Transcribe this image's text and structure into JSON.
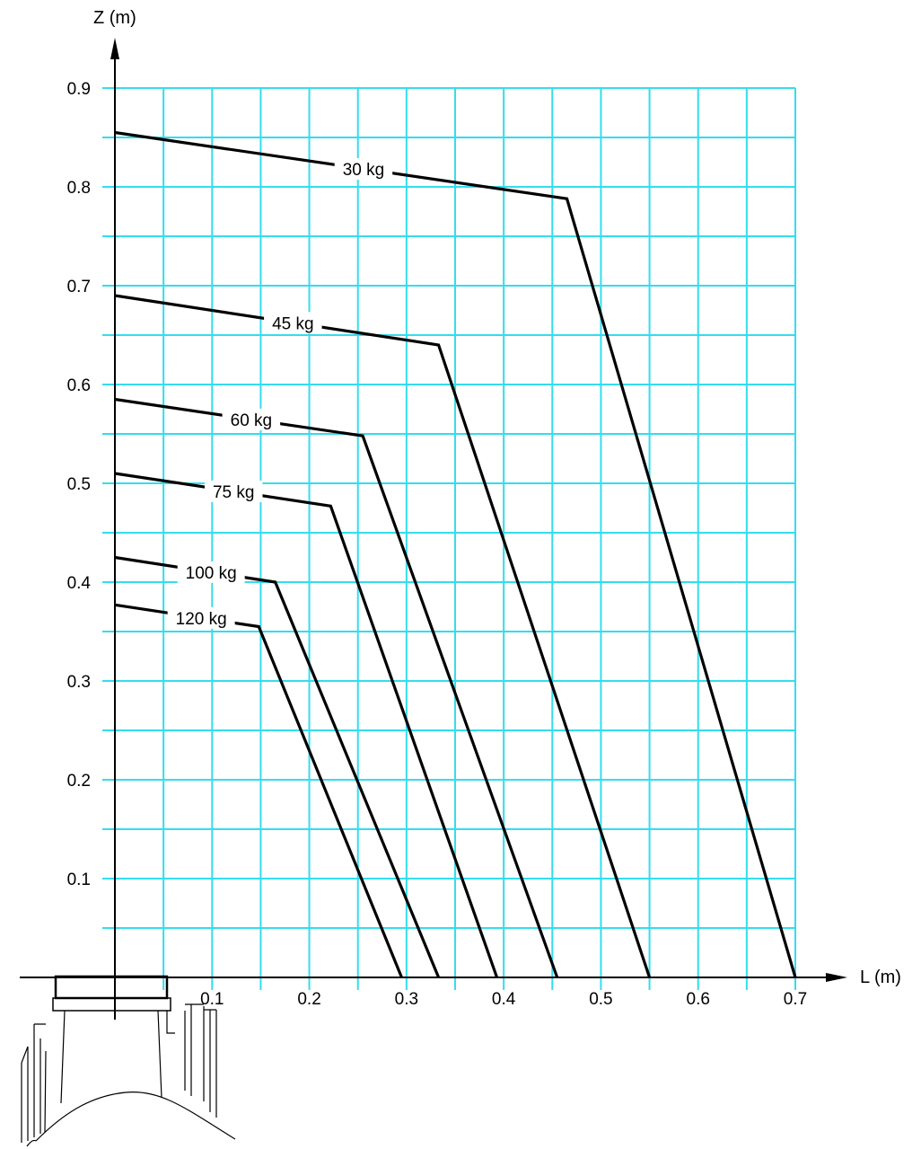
{
  "chart_data": {
    "type": "line",
    "xlabel": "L (m)",
    "ylabel": "Z (m)",
    "xlim": [
      0,
      0.7
    ],
    "ylim": [
      0,
      0.9
    ],
    "xticks": [
      0.1,
      0.2,
      0.3,
      0.4,
      0.5,
      0.6,
      0.7
    ],
    "yticks": [
      0.1,
      0.2,
      0.3,
      0.4,
      0.5,
      0.6,
      0.7,
      0.8,
      0.9
    ],
    "grid": true,
    "grid_color": "#33ddee",
    "line_color": "#000000",
    "series": [
      {
        "name": "30 kg",
        "x": [
          0,
          0.465,
          0.7
        ],
        "y": [
          0.855,
          0.788,
          0
        ]
      },
      {
        "name": "45 kg",
        "x": [
          0,
          0.333,
          0.55
        ],
        "y": [
          0.69,
          0.64,
          0
        ]
      },
      {
        "name": "60 kg",
        "x": [
          0,
          0.255,
          0.455
        ],
        "y": [
          0.585,
          0.548,
          0
        ]
      },
      {
        "name": "75 kg",
        "x": [
          0,
          0.222,
          0.393
        ],
        "y": [
          0.51,
          0.477,
          0
        ]
      },
      {
        "name": "100 kg",
        "x": [
          0,
          0.165,
          0.333
        ],
        "y": [
          0.425,
          0.4,
          0
        ]
      },
      {
        "name": "120 kg",
        "x": [
          0,
          0.148,
          0.295
        ],
        "y": [
          0.377,
          0.355,
          0
        ]
      }
    ]
  }
}
